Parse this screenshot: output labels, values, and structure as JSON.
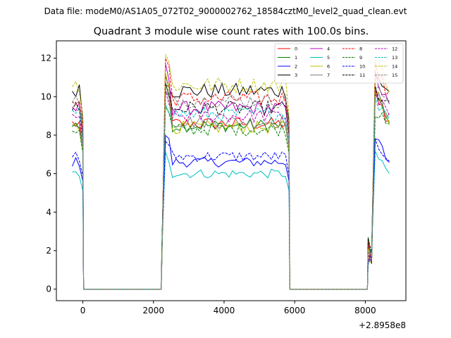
{
  "header": {
    "suptitle": "Data file: modeM0/AS1A05_072T02_9000002762_18584cztM0_level2_quad_clean.evt"
  },
  "chart_data": {
    "type": "line",
    "title": "Quadrant 3 module wise count rates with 100.0s bins.",
    "xlabel": "",
    "ylabel": "",
    "x_offset_label": "+2.8958e8",
    "xlim": [
      -750,
      9150
    ],
    "ylim": [
      -0.6,
      12.9
    ],
    "xticks": [
      0,
      2000,
      4000,
      6000,
      8000
    ],
    "xtick_labels": [
      "0",
      "2000",
      "4000",
      "6000",
      "8000"
    ],
    "yticks": [
      0,
      2,
      4,
      6,
      8,
      10,
      12
    ],
    "ytick_labels": [
      "0",
      "2",
      "4",
      "6",
      "8",
      "10",
      "12"
    ],
    "grid": false,
    "legend_placement": "top-right",
    "segments": [
      {
        "start": -300,
        "end": 0,
        "rise_level": 1.0
      },
      {
        "start": 2240,
        "end": 5840,
        "rise_level": 1.0
      },
      {
        "start": 8080,
        "end": 8640,
        "rise_level": 1.0
      }
    ],
    "series": [
      {
        "name": "0",
        "color": "#ff0000",
        "dash": "solid",
        "level": 8.6,
        "peak": 10.8
      },
      {
        "name": "1",
        "color": "#008000",
        "dash": "solid",
        "level": 8.5,
        "peak": 10.5
      },
      {
        "name": "2",
        "color": "#0000ff",
        "dash": "solid",
        "level": 6.6,
        "peak": 8.1
      },
      {
        "name": "3",
        "color": "#000000",
        "dash": "solid",
        "level": 10.3,
        "peak": 11.2
      },
      {
        "name": "4",
        "color": "#bf00bf",
        "dash": "solid",
        "level": 9.4,
        "peak": 11.5
      },
      {
        "name": "5",
        "color": "#00bfbf",
        "dash": "solid",
        "level": 6.0,
        "peak": 7.3
      },
      {
        "name": "6",
        "color": "#bfbf00",
        "dash": "solid",
        "level": 8.4,
        "peak": 11.0
      },
      {
        "name": "7",
        "color": "#808080",
        "dash": "solid",
        "level": 8.7,
        "peak": 10.6
      },
      {
        "name": "8",
        "color": "#ff0000",
        "dash": "dashed",
        "level": 9.9,
        "peak": 12.0
      },
      {
        "name": "9",
        "color": "#008000",
        "dash": "dashed",
        "level": 8.3,
        "peak": 9.5
      },
      {
        "name": "10",
        "color": "#0000ff",
        "dash": "dashed",
        "level": 6.9,
        "peak": 7.8
      },
      {
        "name": "11",
        "color": "#000000",
        "dash": "dashed",
        "level": 9.4,
        "peak": 10.6
      },
      {
        "name": "12",
        "color": "#bf00bf",
        "dash": "dashed",
        "level": 9.0,
        "peak": 10.3
      },
      {
        "name": "13",
        "color": "#00bfbf",
        "dash": "dashed",
        "level": 9.1,
        "peak": 9.9
      },
      {
        "name": "14",
        "color": "#bfbf00",
        "dash": "dashed",
        "level": 10.6,
        "peak": 12.2
      },
      {
        "name": "15",
        "color": "#808080",
        "dash": "dashed",
        "level": 9.8,
        "peak": 10.5
      }
    ]
  }
}
